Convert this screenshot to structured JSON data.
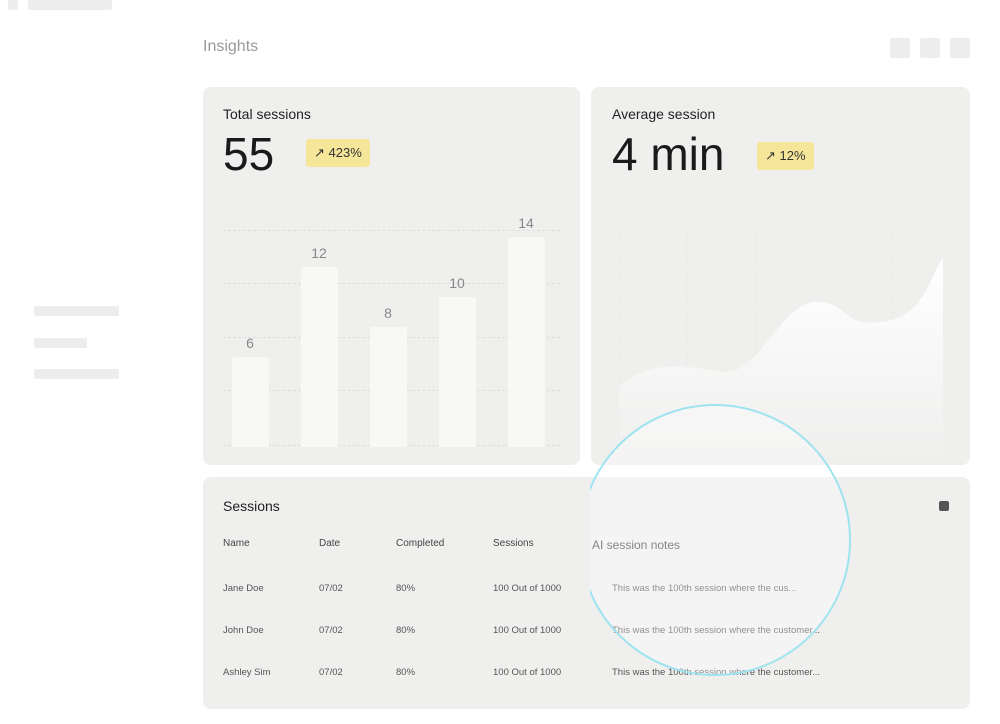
{
  "header": {
    "title": "Insights"
  },
  "cards": [
    {
      "label": "Total sessions",
      "value": "55",
      "badge": "423%",
      "chart": {
        "type": "bar",
        "values": [
          6,
          12,
          8,
          10,
          14
        ]
      }
    },
    {
      "label": "Average session",
      "value": "4 min",
      "badge": "12%"
    }
  ],
  "table": {
    "title": "Sessions",
    "columns": [
      "Name",
      "Date",
      "Completed",
      "Sessions",
      "AI session notes"
    ],
    "rows": [
      [
        "Jane Doe",
        "07/02",
        "80%",
        "100 Out of 1000",
        "This was the 100th session where the cus..."
      ],
      [
        "John Doe",
        "07/02",
        "80%",
        "100 Out of 1000",
        "This was the 100th session where the customer..."
      ],
      [
        "Ashley Sim",
        "07/02",
        "80%",
        "100 Out of 1000",
        "This was the 100th session where the customer..."
      ]
    ]
  }
}
